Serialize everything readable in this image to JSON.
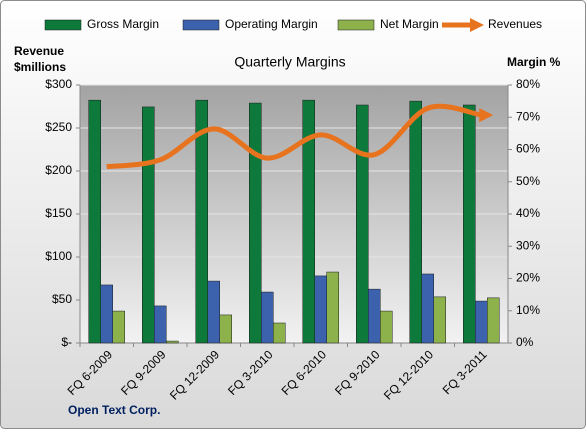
{
  "chart_data": {
    "type": "bar_line",
    "title": "Quarterly Margins",
    "y_label": [
      "Revenue",
      "$millions"
    ],
    "y2_label": "Margin %",
    "source": "Open Text Corp.",
    "categories": [
      "FQ 6-2009",
      "FQ 9-2009",
      "FQ 12-2009",
      "FQ 3-2010",
      "FQ 6-2010",
      "FQ 9-2010",
      "FQ 12-2010",
      "FQ 3-2011"
    ],
    "series": [
      {
        "name": "Gross Margin",
        "type": "bar",
        "axis": "y2",
        "color": "#0d7a3c",
        "values": [
          75.3,
          73.2,
          75.3,
          74.4,
          75.3,
          73.8,
          75,
          73.8
        ]
      },
      {
        "name": "Operating Margin",
        "type": "bar",
        "axis": "y2",
        "color": "#3c62ad",
        "values": [
          18,
          11.5,
          19.2,
          15.8,
          20.8,
          16.7,
          21.4,
          13
        ]
      },
      {
        "name": "Net Margin",
        "type": "bar",
        "axis": "y2",
        "color": "#8db24c",
        "values": [
          9.9,
          0.6,
          8.7,
          6.2,
          22,
          9.9,
          14.3,
          14
        ]
      },
      {
        "name": "Revenues",
        "type": "line",
        "color": "#e8731e",
        "values": [
          205,
          213,
          249,
          215,
          242,
          219,
          273,
          265
        ]
      }
    ],
    "ylim": [
      0,
      300
    ],
    "yticks": [
      {
        "value": 0,
        "label": "$-"
      },
      {
        "value": 50,
        "label": "$50"
      },
      {
        "value": 100,
        "label": "$100"
      },
      {
        "value": 150,
        "label": "$150"
      },
      {
        "value": 200,
        "label": "$200"
      },
      {
        "value": 250,
        "label": "$250"
      },
      {
        "value": 300,
        "label": "$300"
      }
    ],
    "y2lim": [
      0,
      80
    ],
    "y2ticks": [
      {
        "value": 0,
        "label": "0%"
      },
      {
        "value": 10,
        "label": "10%"
      },
      {
        "value": 20,
        "label": "20%"
      },
      {
        "value": 30,
        "label": "30%"
      },
      {
        "value": 40,
        "label": "40%"
      },
      {
        "value": 50,
        "label": "50%"
      },
      {
        "value": 60,
        "label": "60%"
      },
      {
        "value": 70,
        "label": "70%"
      },
      {
        "value": 80,
        "label": "80%"
      }
    ],
    "grid": true,
    "legend": "top"
  }
}
